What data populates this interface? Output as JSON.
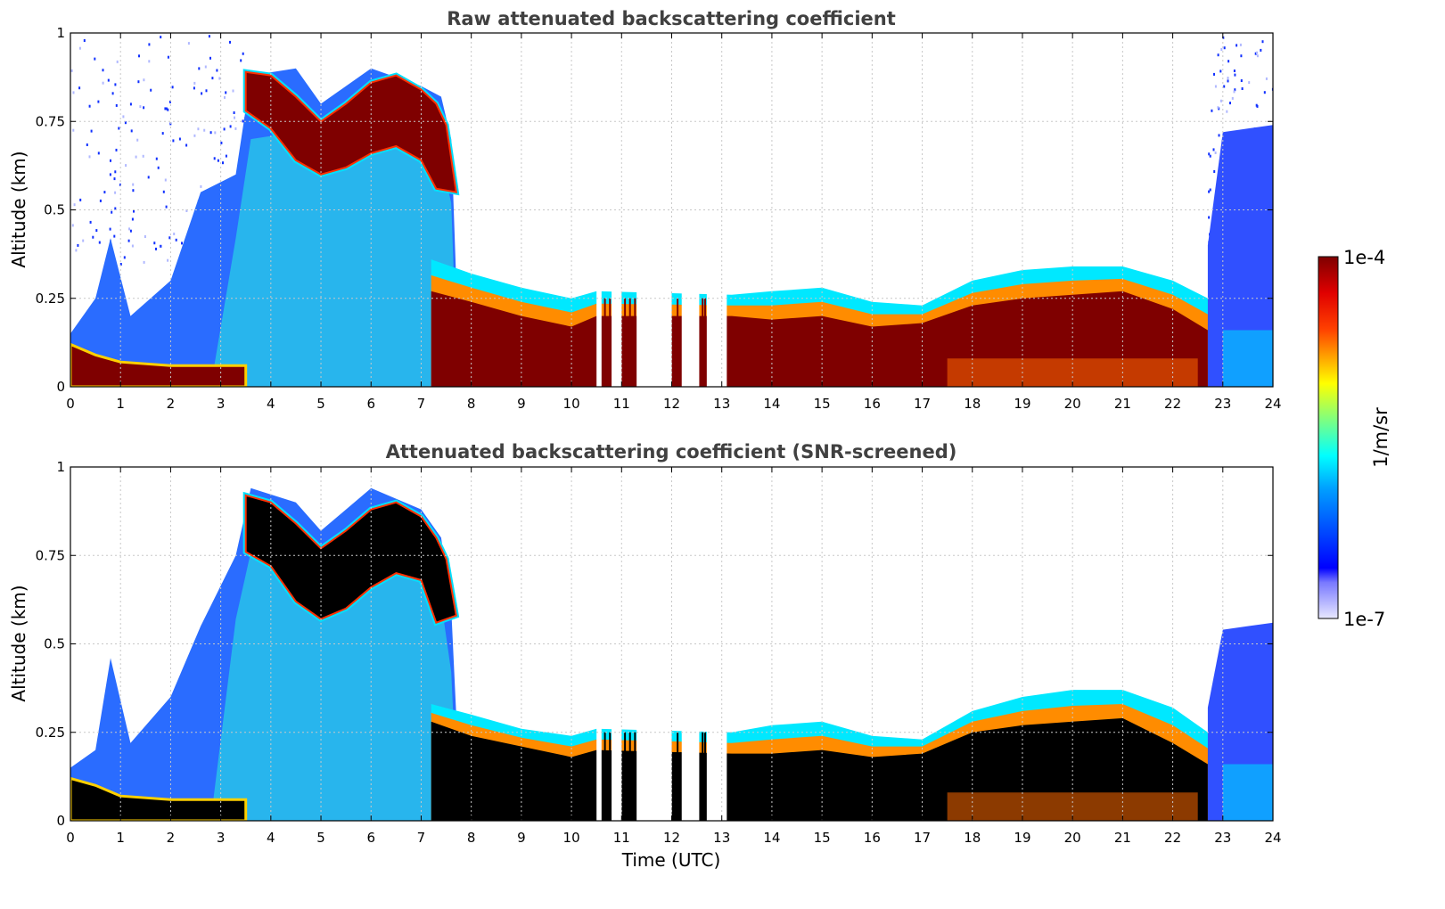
{
  "chart_data": [
    {
      "type": "heatmap",
      "title": "Raw attenuated backscattering coefficient",
      "ylabel": "Altitude (km)",
      "xlim": [
        0,
        24
      ],
      "ylim": [
        0,
        1
      ],
      "xticks": [
        "0",
        "1",
        "2",
        "3",
        "4",
        "5",
        "6",
        "7",
        "8",
        "9",
        "10",
        "11",
        "12",
        "13",
        "14",
        "15",
        "16",
        "17",
        "18",
        "19",
        "20",
        "21",
        "22",
        "23",
        "24"
      ],
      "yticks": [
        {
          "value": 0,
          "label": "0"
        },
        {
          "value": 0.25,
          "label": "0.25"
        },
        {
          "value": 0.5,
          "label": "0.5"
        },
        {
          "value": 0.75,
          "label": "0.75"
        },
        {
          "value": 1,
          "label": "1"
        }
      ],
      "grid": true,
      "saturated_color": "#7f0000",
      "layers": {
        "sparse_noise_top": [
          [
            0,
            1
          ],
          [
            3.5,
            1
          ],
          [
            23,
            1
          ],
          [
            24,
            1
          ]
        ],
        "noise_upper": [
          [
            0,
            0.15
          ],
          [
            0.5,
            0.25
          ],
          [
            0.8,
            0.42
          ],
          [
            1.2,
            0.2
          ],
          [
            2,
            0.3
          ],
          [
            2.6,
            0.55
          ],
          [
            3.3,
            0.6
          ],
          [
            3.6,
            0.88
          ],
          [
            4.5,
            0.9
          ],
          [
            5,
            0.8
          ],
          [
            6,
            0.9
          ],
          [
            7,
            0.85
          ],
          [
            7.4,
            0.82
          ],
          [
            7.6,
            0.7
          ],
          [
            7.7,
            0.3
          ],
          [
            7.7,
            0
          ]
        ],
        "noise_late": [
          [
            22.7,
            0.4
          ],
          [
            23,
            0.72
          ],
          [
            24,
            0.74
          ]
        ],
        "cloud_top": [
          [
            3.5,
            0.89
          ],
          [
            4,
            0.88
          ],
          [
            4.5,
            0.82
          ],
          [
            5,
            0.75
          ],
          [
            5.5,
            0.8
          ],
          [
            6,
            0.86
          ],
          [
            6.5,
            0.88
          ],
          [
            7,
            0.84
          ],
          [
            7.3,
            0.8
          ],
          [
            7.5,
            0.74
          ],
          [
            7.7,
            0.55
          ]
        ],
        "cloud_bottom": [
          [
            3.5,
            0.78
          ],
          [
            4,
            0.73
          ],
          [
            4.5,
            0.64
          ],
          [
            5,
            0.6
          ],
          [
            5.5,
            0.62
          ],
          [
            6,
            0.66
          ],
          [
            6.5,
            0.68
          ],
          [
            7,
            0.64
          ],
          [
            7.3,
            0.56
          ]
        ],
        "boundary_layer_top": [
          [
            7.2,
            0.36
          ],
          [
            8,
            0.32
          ],
          [
            9,
            0.28
          ],
          [
            10,
            0.25
          ],
          [
            10.5,
            0.27
          ],
          [
            13.2,
            0.26
          ],
          [
            14,
            0.27
          ],
          [
            15,
            0.28
          ],
          [
            16,
            0.24
          ],
          [
            17,
            0.23
          ],
          [
            18,
            0.3
          ],
          [
            19,
            0.33
          ],
          [
            20,
            0.34
          ],
          [
            21,
            0.34
          ],
          [
            22,
            0.3
          ],
          [
            22.7,
            0.25
          ],
          [
            23.2,
            0.16
          ]
        ],
        "boundary_layer_saturated_top": [
          [
            7.2,
            0.27
          ],
          [
            8,
            0.24
          ],
          [
            9,
            0.2
          ],
          [
            10,
            0.17
          ],
          [
            10.5,
            0.2
          ],
          [
            13.2,
            0.2
          ],
          [
            14,
            0.19
          ],
          [
            15,
            0.2
          ],
          [
            16,
            0.17
          ],
          [
            17,
            0.18
          ],
          [
            18,
            0.23
          ],
          [
            19,
            0.25
          ],
          [
            20,
            0.26
          ],
          [
            21,
            0.27
          ],
          [
            22,
            0.22
          ],
          [
            22.7,
            0.16
          ]
        ],
        "surface_layer_early": [
          [
            0,
            0.12
          ],
          [
            0.5,
            0.09
          ],
          [
            1,
            0.07
          ],
          [
            2,
            0.06
          ],
          [
            3,
            0.06
          ],
          [
            3.5,
            0.06
          ]
        ],
        "data_gaps_utc": [
          [
            10.5,
            10.6
          ],
          [
            10.8,
            11.0
          ],
          [
            11.3,
            12.0
          ],
          [
            12.2,
            12.55
          ],
          [
            12.7,
            13.1
          ]
        ]
      }
    },
    {
      "type": "heatmap",
      "title": "Attenuated backscattering coefficient (SNR-screened)",
      "xlabel": "Time (UTC)",
      "ylabel": "Altitude (km)",
      "xlim": [
        0,
        24
      ],
      "ylim": [
        0,
        1
      ],
      "xticks": [
        "0",
        "1",
        "2",
        "3",
        "4",
        "5",
        "6",
        "7",
        "8",
        "9",
        "10",
        "11",
        "12",
        "13",
        "14",
        "15",
        "16",
        "17",
        "18",
        "19",
        "20",
        "21",
        "22",
        "23",
        "24"
      ],
      "yticks": [
        {
          "value": 0,
          "label": "0"
        },
        {
          "value": 0.25,
          "label": "0.25"
        },
        {
          "value": 0.5,
          "label": "0.5"
        },
        {
          "value": 0.75,
          "label": "0.75"
        },
        {
          "value": 1,
          "label": "1"
        }
      ],
      "grid": true,
      "saturated_color": "#000000",
      "layers": {
        "sparse_noise_top": [],
        "noise_upper": [
          [
            0,
            0.15
          ],
          [
            0.5,
            0.2
          ],
          [
            0.8,
            0.46
          ],
          [
            1.2,
            0.22
          ],
          [
            2,
            0.35
          ],
          [
            2.6,
            0.55
          ],
          [
            3.3,
            0.75
          ],
          [
            3.6,
            0.94
          ],
          [
            4.5,
            0.9
          ],
          [
            5,
            0.82
          ],
          [
            6,
            0.94
          ],
          [
            7,
            0.88
          ],
          [
            7.4,
            0.8
          ],
          [
            7.6,
            0.6
          ],
          [
            7.7,
            0.3
          ],
          [
            7.7,
            0
          ]
        ],
        "noise_late": [
          [
            22.7,
            0.32
          ],
          [
            23,
            0.54
          ],
          [
            24,
            0.56
          ]
        ],
        "cloud_top": [
          [
            3.5,
            0.92
          ],
          [
            4,
            0.9
          ],
          [
            4.5,
            0.84
          ],
          [
            5,
            0.77
          ],
          [
            5.5,
            0.82
          ],
          [
            6,
            0.88
          ],
          [
            6.5,
            0.9
          ],
          [
            7,
            0.86
          ],
          [
            7.3,
            0.8
          ],
          [
            7.5,
            0.74
          ],
          [
            7.7,
            0.58
          ]
        ],
        "cloud_bottom": [
          [
            3.5,
            0.76
          ],
          [
            4,
            0.72
          ],
          [
            4.5,
            0.62
          ],
          [
            5,
            0.57
          ],
          [
            5.5,
            0.6
          ],
          [
            6,
            0.66
          ],
          [
            6.5,
            0.7
          ],
          [
            7,
            0.68
          ],
          [
            7.3,
            0.56
          ]
        ],
        "boundary_layer_top": [
          [
            7.2,
            0.33
          ],
          [
            8,
            0.3
          ],
          [
            9,
            0.26
          ],
          [
            10,
            0.24
          ],
          [
            10.5,
            0.26
          ],
          [
            13.2,
            0.25
          ],
          [
            14,
            0.27
          ],
          [
            15,
            0.28
          ],
          [
            16,
            0.24
          ],
          [
            17,
            0.23
          ],
          [
            18,
            0.31
          ],
          [
            19,
            0.35
          ],
          [
            20,
            0.37
          ],
          [
            21,
            0.37
          ],
          [
            22,
            0.32
          ],
          [
            22.7,
            0.25
          ],
          [
            23.2,
            0.14
          ]
        ],
        "boundary_layer_saturated_top": [
          [
            7.2,
            0.28
          ],
          [
            8,
            0.24
          ],
          [
            9,
            0.21
          ],
          [
            10,
            0.18
          ],
          [
            10.5,
            0.2
          ],
          [
            13.2,
            0.19
          ],
          [
            14,
            0.19
          ],
          [
            15,
            0.2
          ],
          [
            16,
            0.18
          ],
          [
            17,
            0.19
          ],
          [
            18,
            0.25
          ],
          [
            19,
            0.27
          ],
          [
            20,
            0.28
          ],
          [
            21,
            0.29
          ],
          [
            22,
            0.22
          ],
          [
            22.7,
            0.16
          ]
        ],
        "surface_layer_early": [
          [
            0,
            0.12
          ],
          [
            0.5,
            0.1
          ],
          [
            1,
            0.07
          ],
          [
            2,
            0.06
          ],
          [
            3,
            0.06
          ],
          [
            3.5,
            0.06
          ]
        ],
        "data_gaps_utc": [
          [
            10.5,
            10.6
          ],
          [
            10.8,
            11.0
          ],
          [
            11.3,
            12.0
          ],
          [
            12.2,
            12.55
          ],
          [
            12.7,
            13.1
          ]
        ]
      }
    }
  ],
  "colorbar": {
    "unit": "1/m/sr",
    "max_label": "1e-4",
    "min_label": "1e-7",
    "scale": "log",
    "range": [
      1e-07,
      0.0001
    ],
    "colormap": "jet",
    "min_color": "#e8e8ff",
    "max_color": "#7f0000"
  },
  "colors": {
    "grid": "#c8c8c8",
    "title": "#404040"
  }
}
